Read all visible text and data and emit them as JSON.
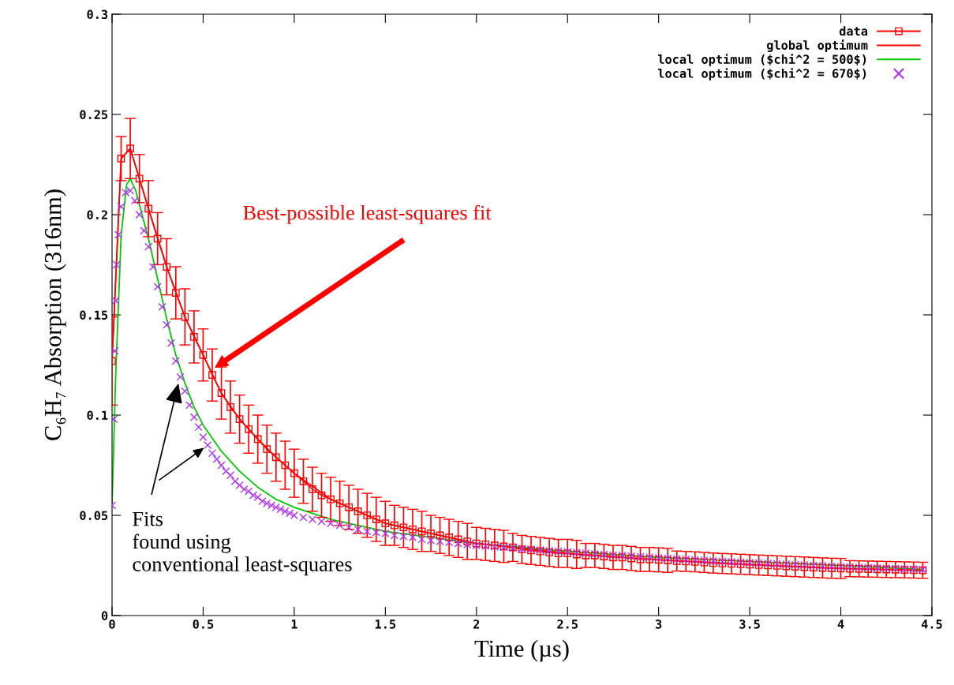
{
  "chart_data": {
    "type": "line",
    "xlabel": "Time (µs)",
    "ylabel": "C₆H₇ Absorption (316nm)",
    "xlim": [
      0,
      4.5
    ],
    "xticks": [
      0,
      0.5,
      1,
      1.5,
      2,
      2.5,
      3,
      3.5,
      4,
      4.5
    ],
    "ylim": [
      0,
      0.3
    ],
    "yticks": [
      0,
      0.05,
      0.1,
      0.15,
      0.2,
      0.25,
      0.3
    ],
    "grid": false,
    "legend": "top right",
    "series": [
      {
        "name": "data",
        "color": "#ff0000",
        "marker": "square",
        "x": [
          0,
          0.05,
          0.1,
          0.15,
          0.2,
          0.25,
          0.3,
          0.35,
          0.4,
          0.45,
          0.5,
          0.55,
          0.6,
          0.65,
          0.7,
          0.75,
          0.8,
          0.85,
          0.9,
          0.95,
          1.0,
          1.05,
          1.1,
          1.15,
          1.2,
          1.25,
          1.3,
          1.35,
          1.4,
          1.45,
          1.5,
          1.55,
          1.6,
          1.65,
          1.7,
          1.75,
          1.8,
          1.85,
          1.9,
          1.95,
          2.0,
          2.05,
          2.1,
          2.15,
          2.2,
          2.25,
          2.3,
          2.35,
          2.4,
          2.45,
          2.5,
          2.55,
          2.6,
          2.65,
          2.7,
          2.75,
          2.8,
          2.85,
          2.9,
          2.95,
          3.0,
          3.05,
          3.1,
          3.15,
          3.2,
          3.25,
          3.3,
          3.35,
          3.4,
          3.45,
          3.5,
          3.55,
          3.6,
          3.65,
          3.7,
          3.75,
          3.8,
          3.85,
          3.9,
          3.95,
          4.0,
          4.05,
          4.1,
          4.15,
          4.2,
          4.25,
          4.3,
          4.35,
          4.4,
          4.45
        ],
        "values": [
          0.127,
          0.228,
          0.233,
          0.218,
          0.203,
          0.188,
          0.174,
          0.161,
          0.149,
          0.139,
          0.13,
          0.12,
          0.111,
          0.104,
          0.098,
          0.093,
          0.088,
          0.083,
          0.079,
          0.075,
          0.071,
          0.067,
          0.063,
          0.06,
          0.058,
          0.056,
          0.054,
          0.052,
          0.05,
          0.048,
          0.046,
          0.045,
          0.044,
          0.043,
          0.042,
          0.041,
          0.04,
          0.039,
          0.038,
          0.037,
          0.036,
          0.0355,
          0.035,
          0.0345,
          0.034,
          0.033,
          0.0325,
          0.032,
          0.0315,
          0.031,
          0.031,
          0.0305,
          0.03,
          0.03,
          0.0295,
          0.029,
          0.029,
          0.0285,
          0.028,
          0.028,
          0.0278,
          0.0275,
          0.0272,
          0.027,
          0.0268,
          0.0265,
          0.0262,
          0.026,
          0.0258,
          0.0256,
          0.0254,
          0.0252,
          0.025,
          0.0248,
          0.0246,
          0.0244,
          0.0242,
          0.024,
          0.0238,
          0.0236,
          0.0235,
          0.0234,
          0.0233,
          0.0232,
          0.0231,
          0.023,
          0.0229,
          0.0228,
          0.0227,
          0.0226
        ],
        "errors": [
          0.022,
          0.011,
          0.015,
          0.012,
          0.014,
          0.013,
          0.014,
          0.013,
          0.014,
          0.013,
          0.013,
          0.013,
          0.013,
          0.013,
          0.012,
          0.012,
          0.012,
          0.012,
          0.012,
          0.012,
          0.012,
          0.011,
          0.011,
          0.011,
          0.011,
          0.011,
          0.011,
          0.011,
          0.011,
          0.011,
          0.011,
          0.01,
          0.01,
          0.01,
          0.01,
          0.009,
          0.009,
          0.009,
          0.009,
          0.009,
          0.008,
          0.008,
          0.008,
          0.008,
          0.007,
          0.007,
          0.007,
          0.007,
          0.007,
          0.007,
          0.007,
          0.007,
          0.006,
          0.006,
          0.006,
          0.006,
          0.006,
          0.006,
          0.006,
          0.006,
          0.006,
          0.006,
          0.005,
          0.005,
          0.005,
          0.005,
          0.005,
          0.005,
          0.005,
          0.005,
          0.005,
          0.005,
          0.005,
          0.005,
          0.005,
          0.005,
          0.005,
          0.005,
          0.005,
          0.005,
          0.005,
          0.004,
          0.004,
          0.004,
          0.004,
          0.004,
          0.004,
          0.004,
          0.004,
          0.004
        ]
      },
      {
        "name": "global optimum",
        "color": "#ff0000",
        "marker": "none",
        "x": [
          0,
          0.05,
          0.1,
          0.15,
          0.2,
          0.3,
          0.4,
          0.5,
          0.6,
          0.7,
          0.8,
          0.9,
          1.0,
          1.2,
          1.5,
          2.0,
          2.5,
          3.0,
          3.5,
          4.0,
          4.45
        ],
        "values": [
          0.127,
          0.228,
          0.233,
          0.218,
          0.203,
          0.174,
          0.149,
          0.13,
          0.111,
          0.098,
          0.088,
          0.079,
          0.071,
          0.058,
          0.046,
          0.036,
          0.031,
          0.0278,
          0.0254,
          0.0235,
          0.0226
        ]
      },
      {
        "name": "local optimum ($chi^2 = 500$)",
        "color": "#00cc00",
        "marker": "none",
        "x": [
          0,
          0.02,
          0.05,
          0.08,
          0.1,
          0.13,
          0.15,
          0.2,
          0.25,
          0.3,
          0.35,
          0.4,
          0.45,
          0.5,
          0.6,
          0.7,
          0.8,
          0.9,
          1.0,
          1.2,
          1.5,
          2.0,
          2.5,
          3.0,
          3.5,
          4.0,
          4.45
        ],
        "values": [
          0.055,
          0.12,
          0.19,
          0.215,
          0.218,
          0.212,
          0.205,
          0.188,
          0.168,
          0.148,
          0.13,
          0.116,
          0.104,
          0.095,
          0.082,
          0.072,
          0.064,
          0.058,
          0.054,
          0.048,
          0.042,
          0.036,
          0.032,
          0.029,
          0.027,
          0.025,
          0.023
        ]
      },
      {
        "name": "local optimum ($chi^2 = 670$)",
        "type": "scatter",
        "color": "#b030ff",
        "marker": "cross",
        "x": [
          0,
          0.01,
          0.015,
          0.02,
          0.025,
          0.035,
          0.05,
          0.075,
          0.1,
          0.125,
          0.15,
          0.175,
          0.2,
          0.225,
          0.25,
          0.275,
          0.3,
          0.325,
          0.35,
          0.375,
          0.4,
          0.425,
          0.45,
          0.475,
          0.5,
          0.525,
          0.55,
          0.575,
          0.6,
          0.625,
          0.65,
          0.675,
          0.7,
          0.725,
          0.75,
          0.775,
          0.8,
          0.825,
          0.85,
          0.875,
          0.9,
          0.925,
          0.95,
          0.975,
          1.0,
          1.05,
          1.1,
          1.15,
          1.2,
          1.25,
          1.3,
          1.35,
          1.4,
          1.45,
          1.5,
          1.55,
          1.6,
          1.65,
          1.7,
          1.75,
          1.8,
          1.85,
          1.9,
          1.95,
          2.0,
          2.05,
          2.1,
          2.15,
          2.2,
          2.25,
          2.3,
          2.35,
          2.4,
          2.45,
          2.5,
          2.55,
          2.6,
          2.65,
          2.7,
          2.75,
          2.8,
          2.85,
          2.9,
          2.95,
          3.0,
          3.05,
          3.1,
          3.15,
          3.2,
          3.25,
          3.3,
          3.35,
          3.4,
          3.45,
          3.5,
          3.55,
          3.6,
          3.65,
          3.7,
          3.75,
          3.8,
          3.85,
          3.9,
          3.95,
          4.0,
          4.05,
          4.1,
          4.15,
          4.2,
          4.25,
          4.3,
          4.35,
          4.4,
          4.45
        ],
        "values": [
          0.055,
          0.098,
          0.132,
          0.157,
          0.175,
          0.19,
          0.204,
          0.211,
          0.212,
          0.207,
          0.2,
          0.192,
          0.184,
          0.174,
          0.164,
          0.154,
          0.145,
          0.136,
          0.127,
          0.119,
          0.112,
          0.105,
          0.099,
          0.094,
          0.089,
          0.085,
          0.081,
          0.078,
          0.075,
          0.072,
          0.07,
          0.067,
          0.065,
          0.063,
          0.062,
          0.06,
          0.059,
          0.057,
          0.056,
          0.055,
          0.054,
          0.053,
          0.052,
          0.051,
          0.05,
          0.049,
          0.048,
          0.047,
          0.046,
          0.045,
          0.044,
          0.043,
          0.042,
          0.0415,
          0.041,
          0.04,
          0.0395,
          0.039,
          0.038,
          0.0375,
          0.037,
          0.0365,
          0.036,
          0.0355,
          0.035,
          0.0347,
          0.0343,
          0.034,
          0.0337,
          0.0333,
          0.033,
          0.0327,
          0.0323,
          0.032,
          0.0317,
          0.0314,
          0.0311,
          0.0308,
          0.0305,
          0.0302,
          0.03,
          0.0297,
          0.0294,
          0.0291,
          0.0288,
          0.0285,
          0.0283,
          0.028,
          0.0278,
          0.0275,
          0.0273,
          0.027,
          0.0268,
          0.0266,
          0.0264,
          0.0262,
          0.026,
          0.0258,
          0.0256,
          0.0254,
          0.0252,
          0.025,
          0.0248,
          0.0246,
          0.0244,
          0.0243,
          0.0241,
          0.0239,
          0.0238,
          0.0236,
          0.0235,
          0.0233,
          0.0232,
          0.023
        ]
      }
    ],
    "annotations": [
      "Best-possible least-squares fit",
      {
        "text": "Fits\nfound using\nconventional least-squares",
        "x": 0.37,
        "y": 0.118
      }
    ]
  }
}
